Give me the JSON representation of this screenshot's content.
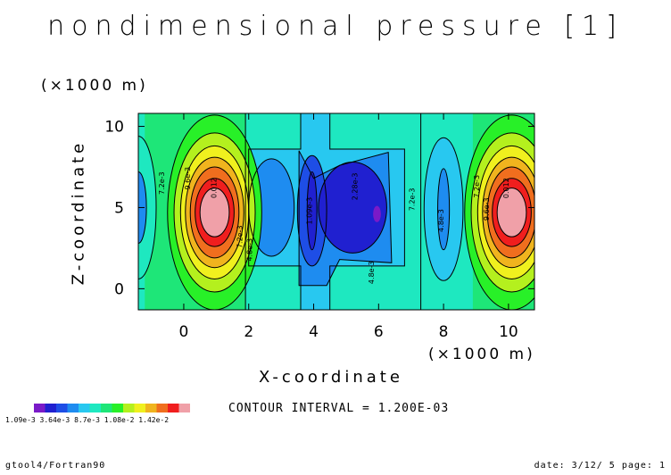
{
  "chart_data": {
    "type": "heatmap",
    "title": "nondimensional pressure [1]",
    "xlabel": "X-coordinate",
    "ylabel": "Z-coordinate",
    "x_unit": "(×1000 m)",
    "y_unit": "(×1000 m)",
    "xlim": [
      -1.4,
      10.8
    ],
    "ylim": [
      -1.3,
      10.8
    ],
    "x_ticks": [
      0,
      2,
      4,
      6,
      8,
      10
    ],
    "y_ticks": [
      0,
      5,
      10
    ],
    "contour_labels": [
      {
        "text": "7.2e-3",
        "x": -0.6,
        "y": 6.5
      },
      {
        "text": "9.6e-3",
        "x": 0.2,
        "y": 6.8
      },
      {
        "text": "0.012",
        "x": 1.0,
        "y": 6.2
      },
      {
        "text": "7.2e-3",
        "x": 1.8,
        "y": 3.2
      },
      {
        "text": "4.8e-3",
        "x": 2.1,
        "y": 2.4
      },
      {
        "text": "1.09e-3",
        "x": 3.95,
        "y": 4.8
      },
      {
        "text": "2.28e-3",
        "x": 5.35,
        "y": 6.3
      },
      {
        "text": "4.8e-3",
        "x": 5.85,
        "y": 1.0
      },
      {
        "text": "7.2e-3",
        "x": 7.1,
        "y": 5.5
      },
      {
        "text": "4.8e-3",
        "x": 8.0,
        "y": 4.2
      },
      {
        "text": "7.2e-3",
        "x": 9.1,
        "y": 6.3
      },
      {
        "text": "9.6e-3",
        "x": 9.4,
        "y": 4.9
      },
      {
        "text": "0.012",
        "x": 10.0,
        "y": 6.2
      }
    ],
    "colorbar": {
      "colors": [
        "#7a1ac8",
        "#2020d0",
        "#1e4ee6",
        "#1e8cf0",
        "#28c8f0",
        "#1ee8c0",
        "#1ee678",
        "#28f028",
        "#b4f01e",
        "#f0f01e",
        "#f0b41e",
        "#f06e1e",
        "#f01e1e",
        "#f0a0a8"
      ],
      "label_text": "1.09e-3 3.64e-3 8.7e-3 1.08e-2 1.42e-2"
    }
  },
  "contour_interval": "CONTOUR INTERVAL = 1.200E-03",
  "footer": {
    "left": "gtool4/Fortran90",
    "right": "date: 3/12/ 5 page: 1"
  }
}
